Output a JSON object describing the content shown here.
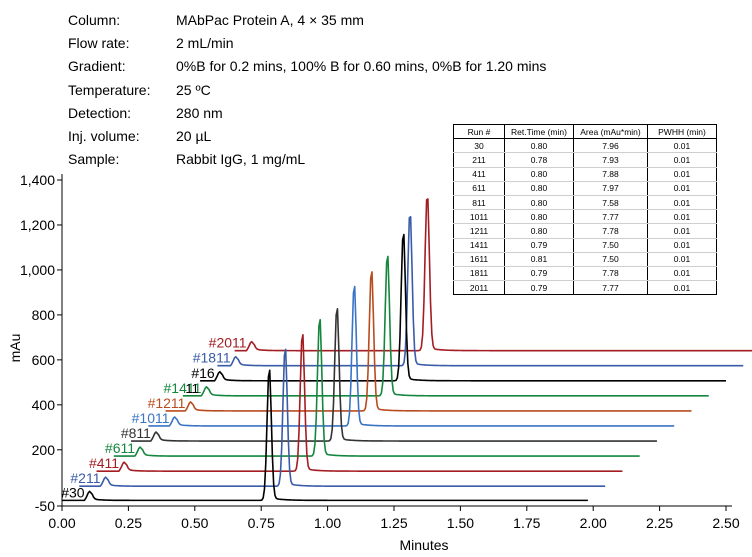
{
  "conditions": [
    {
      "label": "Column:",
      "value": "MAbPac Protein A, 4 × 35 mm"
    },
    {
      "label": "Flow rate:",
      "value": "2 mL/min"
    },
    {
      "label": "Gradient:",
      "value": " 0%B for 0.2 mins, 100% B for 0.60 mins, 0%B for 1.20 mins"
    },
    {
      "label": "Temperature:",
      "value": "25 ºC"
    },
    {
      "label": "Detection:",
      "value": "280 nm"
    },
    {
      "label": "Inj. volume:",
      "value": "20 µL"
    },
    {
      "label": "Sample:",
      "value": "Rabbit IgG, 1 mg/mL"
    }
  ],
  "table": {
    "headers": [
      "Run #",
      "Ret.Time (min)",
      "Area (mAu*min)",
      "PWHH (min)"
    ],
    "rows": [
      [
        "30",
        "0.80",
        "7.96",
        "0.01"
      ],
      [
        "211",
        "0.78",
        "7.93",
        "0.01"
      ],
      [
        "411",
        "0.80",
        "7.88",
        "0.01"
      ],
      [
        "611",
        "0.80",
        "7.97",
        "0.01"
      ],
      [
        "811",
        "0.80",
        "7.58",
        "0.01"
      ],
      [
        "1011",
        "0.80",
        "7.77",
        "0.01"
      ],
      [
        "1211",
        "0.80",
        "7.78",
        "0.01"
      ],
      [
        "1411",
        "0.79",
        "7.50",
        "0.01"
      ],
      [
        "1611",
        "0.81",
        "7.50",
        "0.01"
      ],
      [
        "1811",
        "0.79",
        "7.78",
        "0.01"
      ],
      [
        "2011",
        "0.79",
        "7.77",
        "0.01"
      ]
    ]
  },
  "chart_data": {
    "type": "line",
    "xlabel": "Minutes",
    "ylabel": "mAu",
    "xlim": [
      0.0,
      2.5
    ],
    "ylim": [
      -50,
      1400
    ],
    "x_ticks": [
      "0.00",
      "0.25",
      "0.50",
      "0.75",
      "1.00",
      "1.25",
      "1.50",
      "1.75",
      "2.00",
      "2.25",
      "2.50"
    ],
    "y_ticks": [
      "-50",
      "200",
      "400",
      "600",
      "800",
      "1,000",
      "1,200",
      "1,400"
    ],
    "stack_note": "traces offset in time and mAu (stacked overlay)",
    "series": [
      {
        "name": "#30",
        "color": "#000000",
        "x_offset": 0.0,
        "baseline": -25,
        "inj_x": 0.1,
        "inj_h": 40,
        "peak_x": 0.78,
        "peak_top": 560,
        "end_x": 1.98
      },
      {
        "name": "#211",
        "color": "#3a5ba8",
        "x_offset": 0.065,
        "baseline": 38,
        "inj_x": 0.16,
        "inj_h": 40,
        "peak_x": 0.84,
        "peak_top": 655,
        "end_x": 2.045
      },
      {
        "name": "#411",
        "color": "#a31d22",
        "x_offset": 0.13,
        "baseline": 105,
        "inj_x": 0.23,
        "inj_h": 40,
        "peak_x": 0.905,
        "peak_top": 720,
        "end_x": 2.11
      },
      {
        "name": "#611",
        "color": "#14863e",
        "x_offset": 0.195,
        "baseline": 172,
        "inj_x": 0.29,
        "inj_h": 40,
        "peak_x": 0.97,
        "peak_top": 787,
        "end_x": 2.175
      },
      {
        "name": "#811",
        "color": "#333333",
        "x_offset": 0.26,
        "baseline": 239,
        "inj_x": 0.35,
        "inj_h": 40,
        "peak_x": 1.035,
        "peak_top": 835,
        "end_x": 2.24
      },
      {
        "name": "#1011",
        "color": "#3a74c4",
        "x_offset": 0.325,
        "baseline": 306,
        "inj_x": 0.42,
        "inj_h": 40,
        "peak_x": 1.1,
        "peak_top": 935,
        "end_x": 2.305
      },
      {
        "name": "#1211",
        "color": "#b94c1f",
        "x_offset": 0.39,
        "baseline": 373,
        "inj_x": 0.48,
        "inj_h": 40,
        "peak_x": 1.165,
        "peak_top": 1000,
        "end_x": 2.37
      },
      {
        "name": "#1411",
        "color": "#14863e",
        "x_offset": 0.455,
        "baseline": 440,
        "inj_x": 0.54,
        "inj_h": 40,
        "peak_x": 1.225,
        "peak_top": 1070,
        "end_x": 2.435
      },
      {
        "name": "#16",
        "color": "#000000",
        "x_offset": 0.52,
        "baseline": 507,
        "inj_x": 0.59,
        "inj_h": 40,
        "peak_x": 1.285,
        "peak_top": 1170,
        "end_x": 2.5
      },
      {
        "name": "#1811",
        "color": "#3a5ba8",
        "x_offset": 0.585,
        "baseline": 574,
        "inj_x": 0.65,
        "inj_h": 40,
        "peak_x": 1.31,
        "peak_top": 1260,
        "end_x": 2.565
      },
      {
        "name": "#2011",
        "color": "#a31d22",
        "x_offset": 0.65,
        "baseline": 641,
        "inj_x": 0.71,
        "inj_h": 40,
        "peak_x": 1.375,
        "peak_top": 1340,
        "end_x": 2.63
      }
    ],
    "extra_labels": [
      {
        "text": "11",
        "color": "#000000",
        "x": 0.49,
        "y": 560
      }
    ]
  }
}
